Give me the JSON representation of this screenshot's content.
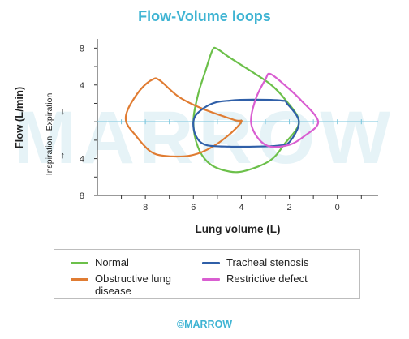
{
  "chart_data": {
    "type": "line",
    "title": "Flow-Volume loops",
    "xlabel": "Lung volume (L)",
    "ylabel": "Flow (L/min)",
    "ylabel_expiration": "Expiration",
    "ylabel_inspiration": "Inspiration",
    "xlim": [
      10,
      -1.7
    ],
    "ylim": [
      -8,
      9
    ],
    "x_ticks": [
      "8",
      "6",
      "4",
      "2",
      "0"
    ],
    "x_tick_values": [
      8,
      6,
      4,
      2,
      0
    ],
    "y_ticks": [
      "8",
      "4",
      "4",
      "8"
    ],
    "y_tick_values": [
      8,
      4,
      -4,
      -8
    ],
    "grid": false,
    "legend_position": "bottom",
    "series": [
      {
        "name": "Normal",
        "color": "#6cc04a",
        "points": [
          [
            6,
            0
          ],
          [
            5.8,
            3
          ],
          [
            5.5,
            5.5
          ],
          [
            5.2,
            7.8
          ],
          [
            5,
            7.9
          ],
          [
            4.5,
            7
          ],
          [
            3.6,
            5.5
          ],
          [
            2.8,
            4.1
          ],
          [
            2.2,
            2.5
          ],
          [
            1.6,
            0
          ],
          [
            2.2,
            -2.4
          ],
          [
            2.8,
            -4.2
          ],
          [
            3.8,
            -5.3
          ],
          [
            4.5,
            -5.4
          ],
          [
            5.3,
            -4.6
          ],
          [
            5.8,
            -2.8
          ],
          [
            6,
            0
          ]
        ]
      },
      {
        "name": "Obstructive lung disease",
        "color": "#e07c32",
        "points": [
          [
            4,
            0
          ],
          [
            4.3,
            0.2
          ],
          [
            5.6,
            1.4
          ],
          [
            6.6,
            2.7
          ],
          [
            7.4,
            4.5
          ],
          [
            7.7,
            4.6
          ],
          [
            8.2,
            3.5
          ],
          [
            8.7,
            1.5
          ],
          [
            8.8,
            0
          ],
          [
            8.4,
            -1.5
          ],
          [
            7.8,
            -3.2
          ],
          [
            7.2,
            -3.7
          ],
          [
            6.2,
            -3.7
          ],
          [
            5.4,
            -3
          ],
          [
            4.6,
            -1.6
          ],
          [
            4,
            0
          ]
        ]
      },
      {
        "name": "Tracheal stenosis",
        "color": "#2f5fa8",
        "points": [
          [
            6,
            0
          ],
          [
            5.8,
            1
          ],
          [
            5.2,
            2
          ],
          [
            4.5,
            2.3
          ],
          [
            3.5,
            2.4
          ],
          [
            2.3,
            2.3
          ],
          [
            2.1,
            2
          ],
          [
            1.6,
            0
          ],
          [
            2,
            -2.2
          ],
          [
            2.5,
            -2.6
          ],
          [
            3.5,
            -2.7
          ],
          [
            4.5,
            -2.7
          ],
          [
            5.5,
            -2.5
          ],
          [
            5.9,
            -1.5
          ],
          [
            6,
            0
          ]
        ]
      },
      {
        "name": "Restrictive defect",
        "color": "#d95ed1",
        "points": [
          [
            3.6,
            0
          ],
          [
            3.4,
            2.5
          ],
          [
            3,
            4.6
          ],
          [
            2.8,
            5.2
          ],
          [
            2.2,
            4
          ],
          [
            1.5,
            2.3
          ],
          [
            0.8,
            0
          ],
          [
            1.4,
            -1.6
          ],
          [
            2,
            -2.5
          ],
          [
            2.8,
            -2.7
          ],
          [
            3.3,
            -1.8
          ],
          [
            3.6,
            0
          ]
        ]
      }
    ]
  },
  "watermark": "MARROW",
  "footer": "©MARROW",
  "axis_arrows": {
    "up": "↑",
    "down": "↓"
  }
}
